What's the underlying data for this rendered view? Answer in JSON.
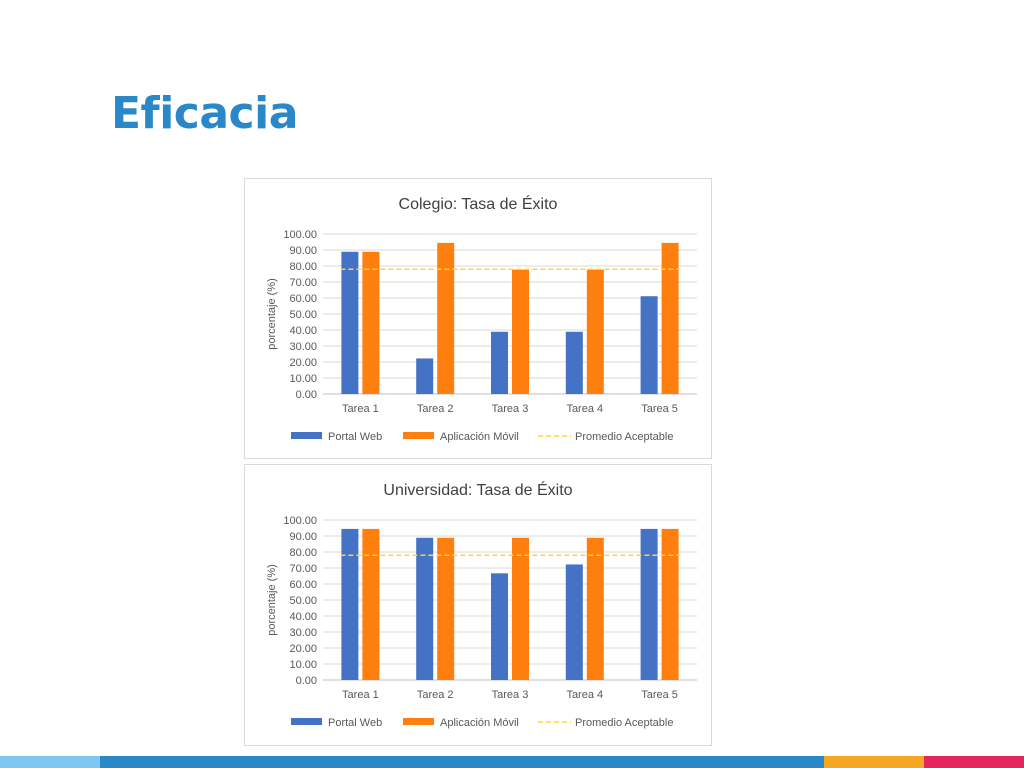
{
  "slide": {
    "title": "Eficacia"
  },
  "colors": {
    "portal_web": "#4472c4",
    "aplicacion_movil": "#ff7f0e",
    "promedio": "#ffd23f",
    "title": "#2a87c8",
    "bar_1": "#7dc8f0",
    "bar_2": "#2a87c8",
    "bar_3": "#f5a623",
    "bar_4": "#e8245e"
  },
  "chart_data": [
    {
      "type": "bar",
      "title": "Colegio: Tasa de Éxito",
      "xlabel": "",
      "ylabel": "porcentaje (%)",
      "ylim": [
        0,
        100
      ],
      "yticks": [
        "0.00",
        "10.00",
        "20.00",
        "30.00",
        "40.00",
        "50.00",
        "60.00",
        "70.00",
        "80.00",
        "90.00",
        "100.00"
      ],
      "categories": [
        "Tarea 1",
        "Tarea 2",
        "Tarea 3",
        "Tarea 4",
        "Tarea 5"
      ],
      "series": [
        {
          "name": "Portal Web",
          "values": [
            88.89,
            22.22,
            38.89,
            38.89,
            61.11
          ]
        },
        {
          "name": "Aplicación Móvil",
          "values": [
            88.89,
            94.44,
            77.78,
            77.78,
            94.44
          ]
        }
      ],
      "reference_line": {
        "name": "Promedio Aceptable",
        "value": 78,
        "style": "dashed"
      },
      "legend": "bottom",
      "grid": true
    },
    {
      "type": "bar",
      "title": "Universidad: Tasa de Éxito",
      "xlabel": "",
      "ylabel": "porcentaje (%)",
      "ylim": [
        0,
        100
      ],
      "yticks": [
        "0.00",
        "10.00",
        "20.00",
        "30.00",
        "40.00",
        "50.00",
        "60.00",
        "70.00",
        "80.00",
        "90.00",
        "100.00"
      ],
      "categories": [
        "Tarea 1",
        "Tarea 2",
        "Tarea 3",
        "Tarea 4",
        "Tarea 5"
      ],
      "series": [
        {
          "name": "Portal Web",
          "values": [
            94.44,
            88.89,
            66.67,
            72.22,
            94.44
          ]
        },
        {
          "name": "Aplicación Móvil",
          "values": [
            94.44,
            88.89,
            88.89,
            88.89,
            94.44
          ]
        }
      ],
      "reference_line": {
        "name": "Promedio Aceptable",
        "value": 78,
        "style": "dashed"
      },
      "legend": "bottom",
      "grid": true
    }
  ]
}
